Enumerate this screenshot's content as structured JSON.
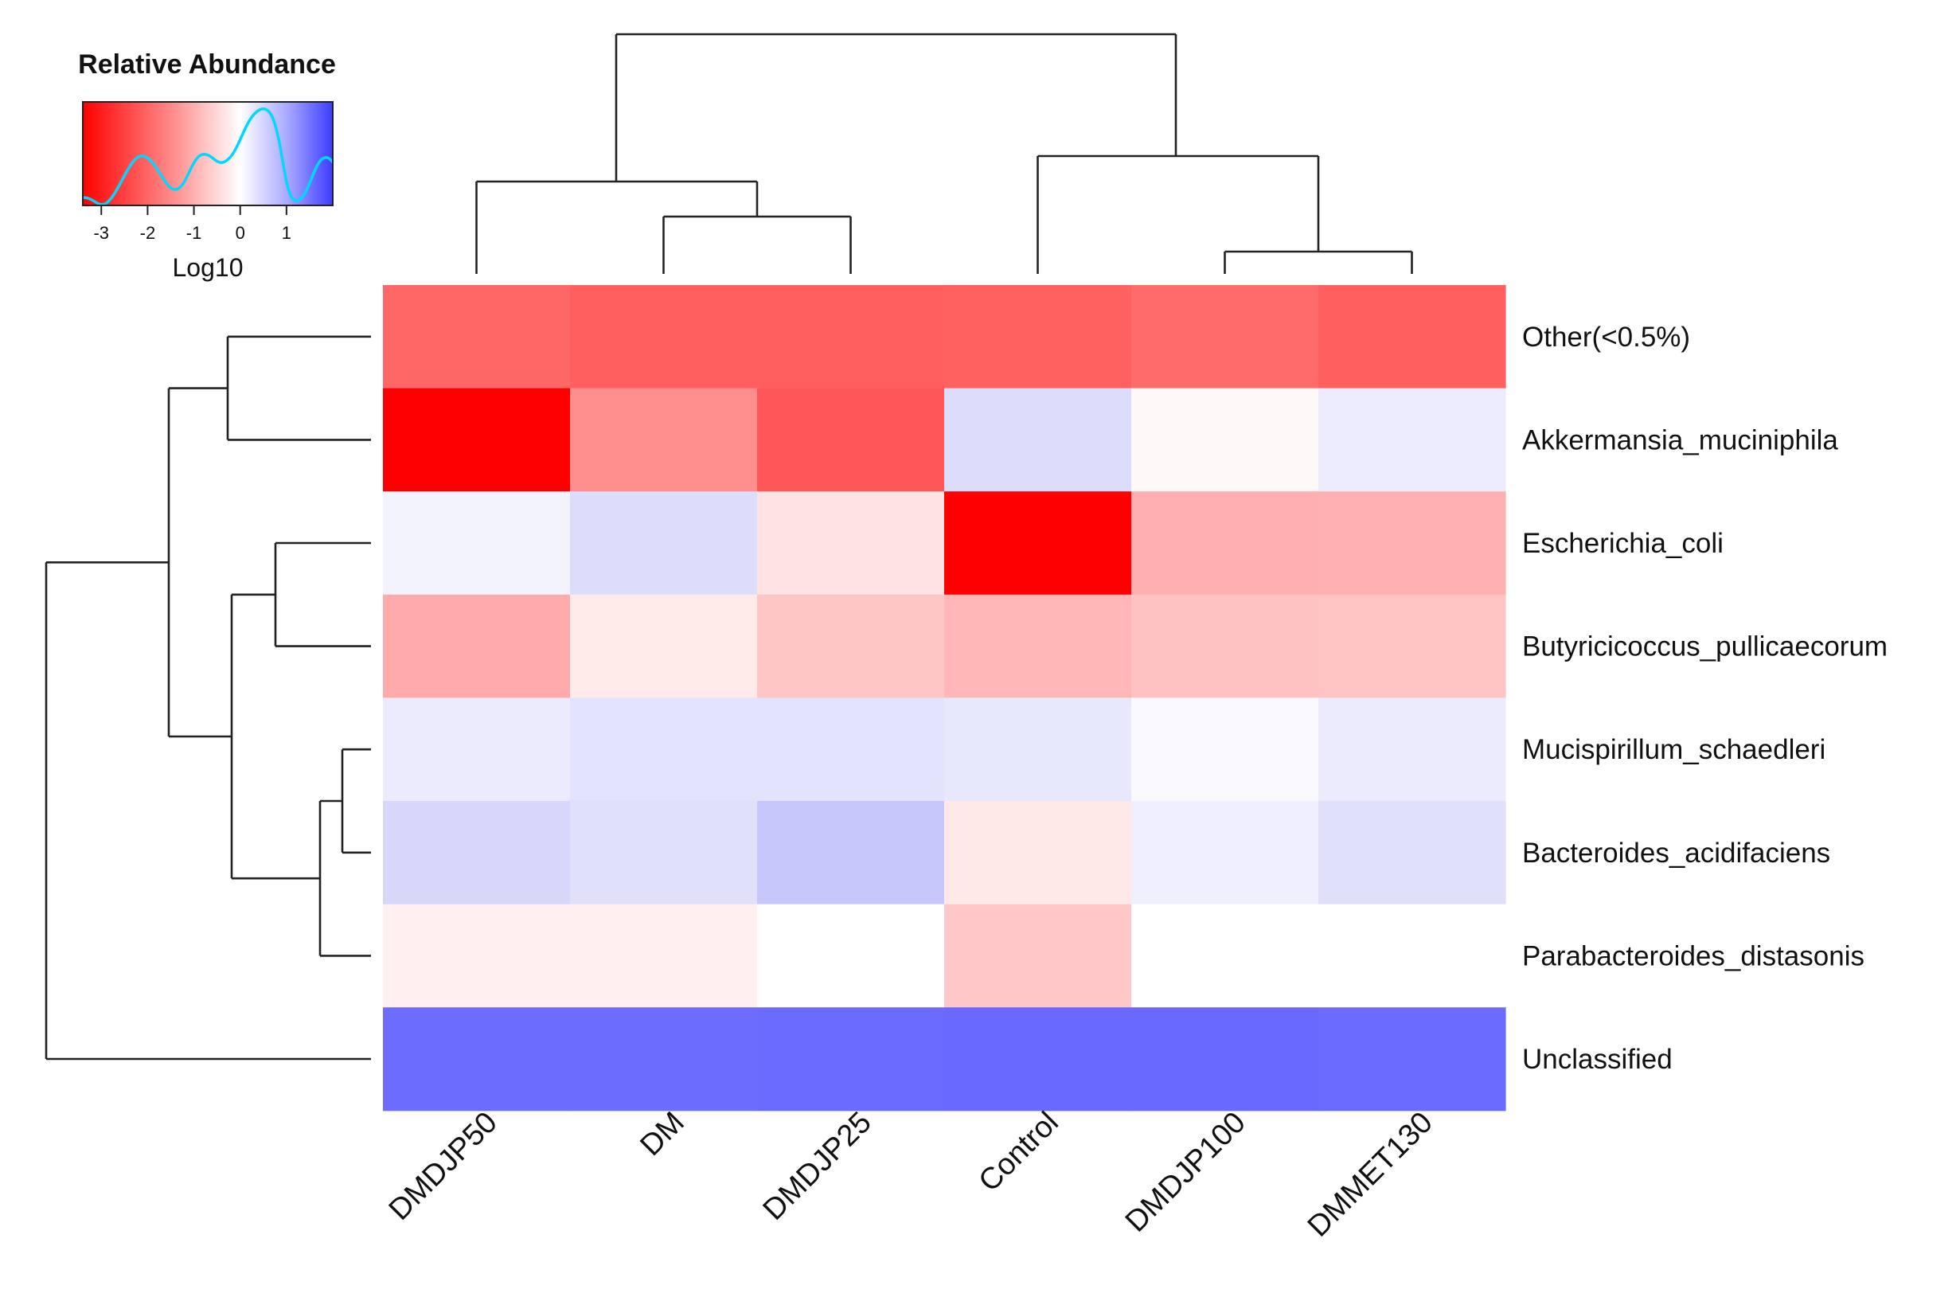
{
  "chart_data": {
    "type": "heatmap",
    "legend": {
      "title": "Relative Abundance",
      "xlabel": "Log10",
      "ticks": [
        "-3",
        "-2",
        "-1",
        "0",
        "1"
      ],
      "tick_values": [
        -3,
        -2,
        -1,
        0,
        1
      ],
      "range": [
        -3.4,
        2.0
      ],
      "colors": {
        "low": "#ff0000",
        "mid": "#ffffff",
        "high": "#0000ff",
        "density_line": "#00d8ff"
      }
    },
    "columns": [
      "DMDJP50",
      "DM",
      "DMDJP25",
      "Control",
      "DMDJP100",
      "DMMET130"
    ],
    "rows": [
      "Other(<0.5%)",
      "Akkermansia_muciniphila",
      "Escherichia_coli",
      "Butyricicoccus_pullicaecorum",
      "Mucispirillum_schaedleri",
      "Bacteroides_acidifaciens",
      "Parabacteroides_distasonis",
      "Unclassified"
    ],
    "cell_colors": [
      [
        "#ff6666",
        "#ff5f5f",
        "#ff5f5f",
        "#ff6060",
        "#ff6b6b",
        "#ff5f5f"
      ],
      [
        "#ff0000",
        "#ff8f8f",
        "#ff5757",
        "#dcdcfb",
        "#fff8f8",
        "#ececfe"
      ],
      [
        "#f3f3fe",
        "#dcdcfb",
        "#ffe2e2",
        "#ff0000",
        "#ffafaf",
        "#ffb0b0"
      ],
      [
        "#ffabab",
        "#ffeaea",
        "#ffc6c6",
        "#ffb6b6",
        "#ffc2c2",
        "#ffc3c3"
      ],
      [
        "#ebebfd",
        "#e3e3fd",
        "#e3e3fd",
        "#e8e8fd",
        "#f9f9fe",
        "#ebebfd"
      ],
      [
        "#d7d7fa",
        "#e0e0fb",
        "#c6c6fa",
        "#ffe8e8",
        "#efeffd",
        "#e0e0fb"
      ],
      [
        "#ffefef",
        "#ffefef",
        "#ffffff",
        "#ffc8c8",
        "#ffffff",
        "#ffffff"
      ],
      [
        "#6c6cff",
        "#6c6cff",
        "#6a6aff",
        "#6969ff",
        "#6969ff",
        "#6b6bff"
      ]
    ],
    "col_dendrogram": [
      {
        "children": [
          "DMDJP50",
          "DM|DMDJP25"
        ]
      },
      {
        "children": [
          "DM",
          "DMDJP25"
        ]
      },
      {
        "children": [
          "Control",
          "DMDJP100|DMMET130"
        ]
      },
      {
        "children": [
          "DMDJP100",
          "DMMET130"
        ]
      }
    ],
    "row_dendrogram": [
      {
        "children": [
          "Other(<0.5%)",
          "Akkermansia_muciniphila"
        ]
      },
      {
        "children": [
          "Escherichia_coli",
          "Butyricicoccus_pullicaecorum"
        ]
      },
      {
        "children": [
          "Mucispirillum_schaedleri",
          "Bacteroides_acidifaciens"
        ]
      },
      {
        "children": [
          "Mucispirillum_schaedleri|Bacteroides_acidifaciens",
          "Parabacteroides_distasonis"
        ]
      }
    ]
  }
}
